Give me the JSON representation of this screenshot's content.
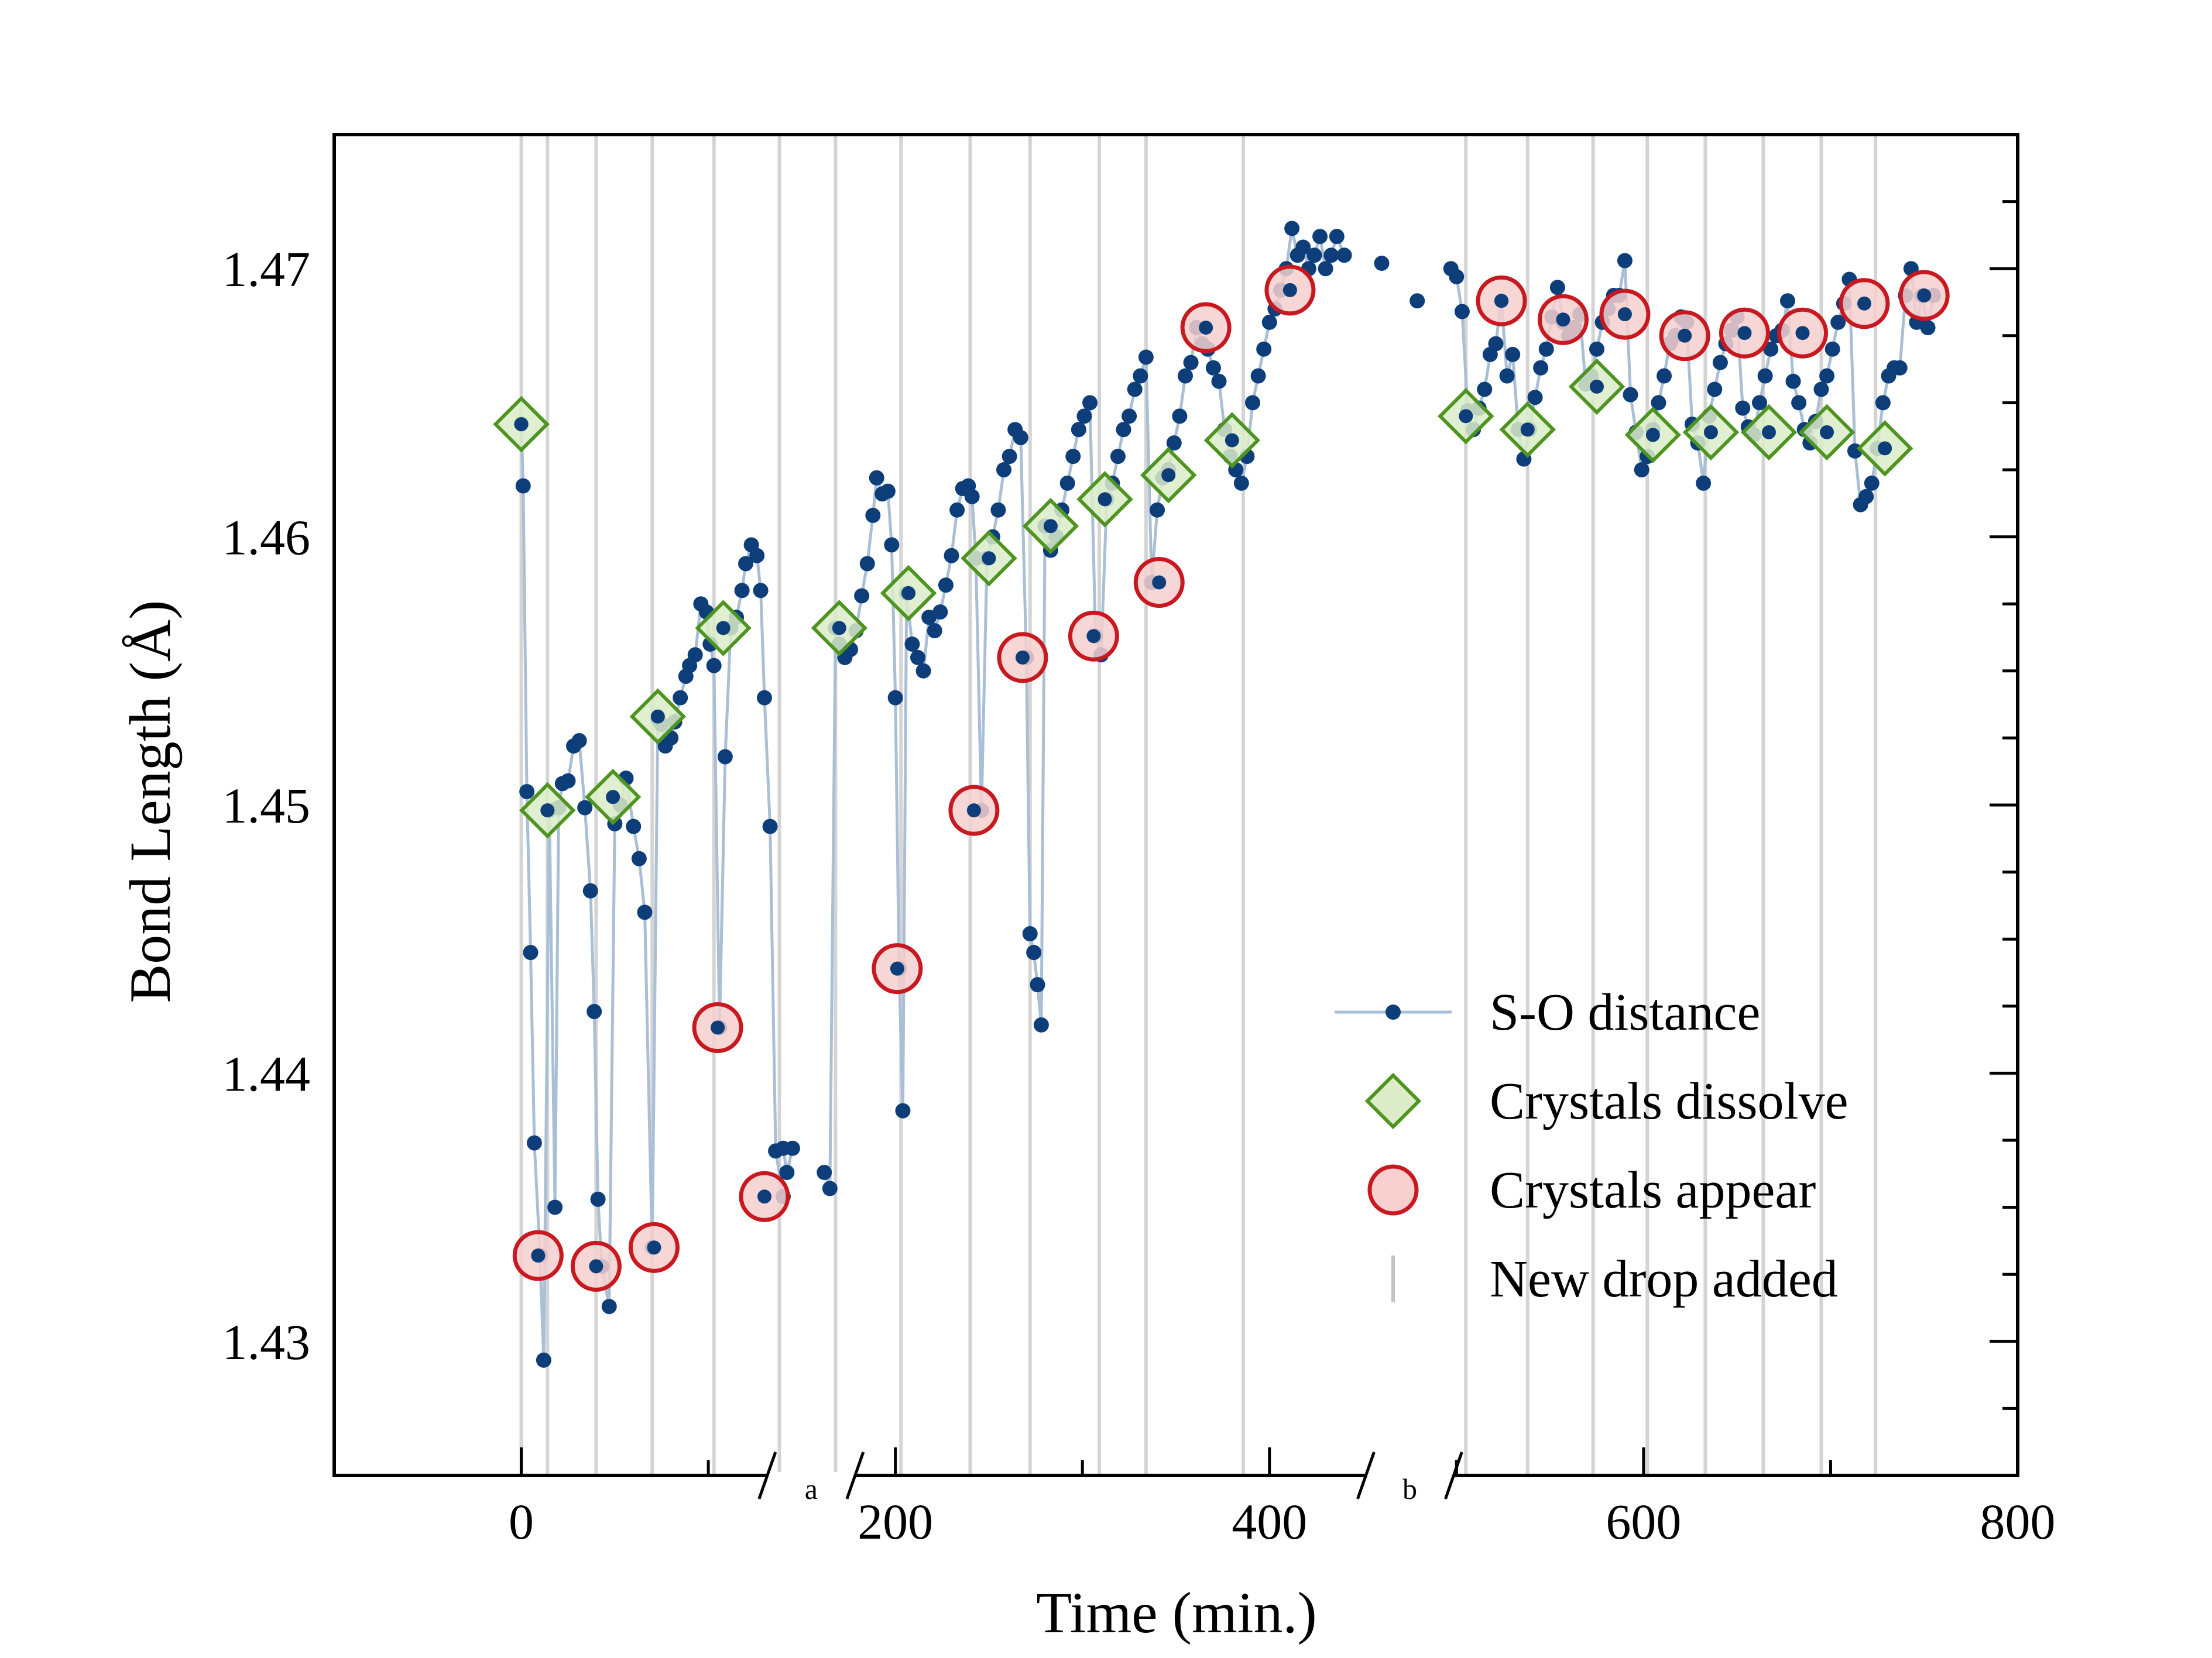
{
  "chart_data": {
    "type": "scatter",
    "title": "",
    "xlabel": "Time (min.)",
    "ylabel": "Bond Length (Å)",
    "xlim": [
      -100,
      800
    ],
    "ylim": [
      1.425,
      1.475
    ],
    "xticks": [
      0,
      200,
      400,
      600,
      800
    ],
    "xtick_labels": [
      "0",
      "200",
      "400",
      "600",
      "800"
    ],
    "yticks": [
      1.43,
      1.44,
      1.45,
      1.46,
      1.47
    ],
    "ytick_labels": [
      "1.43",
      "1.44",
      "1.45",
      "1.46",
      "1.47"
    ],
    "axis_breaks": [
      {
        "label": "a",
        "at": 155
      },
      {
        "label": "b",
        "at": 475
      }
    ],
    "legend": {
      "position": "lower-right",
      "entries": [
        {
          "label": "S-O distance",
          "marker": "line-dot"
        },
        {
          "label": "Crystals dissolve",
          "marker": "diamond"
        },
        {
          "label": "Crystals appear",
          "marker": "circle"
        },
        {
          "label": "New drop added",
          "marker": "vline"
        }
      ]
    },
    "colors": {
      "line": "#a9bfd6",
      "point": "#0d3e7a",
      "diamond_edge": "#4e9420",
      "diamond_fill": "#dcecc9",
      "circle_edge": "#c81820",
      "circle_fill": "#f6cfcf",
      "drop_line": "#d4d4d4"
    },
    "new_drop_times": [
      0,
      14,
      40,
      70,
      103,
      138,
      168,
      203,
      240,
      272,
      309,
      334,
      386,
      505,
      538,
      573,
      602,
      633,
      664,
      695,
      724
    ],
    "series": [
      {
        "name": "S-O distance",
        "segments": [
          {
            "x": [
              0,
              1,
              3,
              5,
              7,
              10,
              12,
              15,
              18,
              20,
              22,
              25,
              28,
              31,
              34,
              37,
              39,
              41,
              43,
              47,
              50,
              53,
              56,
              60,
              63,
              66,
              70,
              73,
              75,
              77,
              80,
              82,
              85,
              88,
              90,
              93,
              96,
              99,
              101,
              103,
              106,
              109,
              112,
              115,
              118,
              120,
              123,
              126,
              128,
              130,
              133,
              136,
              140
            ],
            "y": [
              1.4642,
              1.4619,
              1.4505,
              1.4445,
              1.4374,
              1.4332,
              1.4293,
              1.4498,
              1.435,
              1.4499,
              1.4508,
              1.4509,
              1.4522,
              1.4524,
              1.4499,
              1.4468,
              1.4423,
              1.4353,
              1.4328,
              1.4313,
              1.4493,
              1.45,
              1.451,
              1.4492,
              1.448,
              1.446,
              1.4335,
              1.4532,
              1.453,
              1.4522,
              1.4525,
              1.4531,
              1.454,
              1.4548,
              1.4552,
              1.4556,
              1.4575,
              1.4572,
              1.456,
              1.4552,
              1.4417,
              1.4518,
              1.4566,
              1.457,
              1.458,
              1.459,
              1.4597,
              1.4593,
              1.458,
              1.454,
              1.4492,
              1.4371,
              1.4354
            ]
          },
          {
            "x": [
              140,
              142,
              145
            ],
            "y": [
              1.4372,
              1.4363,
              1.4372
            ]
          },
          {
            "x": [
              162,
              165,
              168,
              170,
              173,
              176,
              179,
              182,
              185,
              188,
              190,
              193,
              196,
              198,
              200,
              202,
              204,
              206,
              209,
              212,
              215,
              218,
              221,
              224,
              227,
              230,
              233,
              236,
              239,
              241,
              243,
              246,
              249,
              252,
              255,
              258,
              261,
              264,
              267,
              270,
              272,
              274,
              276,
              278,
              280,
              283,
              286,
              289,
              292,
              295,
              298,
              301,
              304,
              307,
              310,
              313,
              316,
              319,
              322,
              325,
              328,
              331,
              334,
              337,
              340,
              343,
              346,
              349,
              352,
              355,
              358,
              361,
              364,
              367,
              370,
              373,
              376,
              379,
              382,
              385,
              388,
              391,
              394,
              397,
              400,
              403,
              406,
              409,
              412,
              415,
              418,
              421,
              424,
              427,
              430,
              433,
              436,
              440
            ],
            "y": [
              1.4363,
              1.4357,
              1.4566,
              1.456,
              1.4555,
              1.4558,
              1.4565,
              1.4578,
              1.459,
              1.4608,
              1.4622,
              1.4616,
              1.4617,
              1.4597,
              1.454,
              1.4439,
              1.4386,
              1.4579,
              1.456,
              1.4555,
              1.455,
              1.457,
              1.4565,
              1.4572,
              1.4582,
              1.4593,
              1.461,
              1.4618,
              1.4619,
              1.4615,
              1.4592,
              1.4498,
              1.4592,
              1.46,
              1.461,
              1.4625,
              1.463,
              1.464,
              1.4637,
              1.4555,
              1.4452,
              1.4445,
              1.4433,
              1.4418,
              1.4604,
              1.4595,
              1.46,
              1.461,
              1.462,
              1.463,
              1.464,
              1.4645,
              1.465,
              1.4563,
              1.4556,
              1.4614,
              1.462,
              1.463,
              1.464,
              1.4645,
              1.4655,
              1.466,
              1.4667,
              1.4583,
              1.461,
              1.4622,
              1.4625,
              1.4635,
              1.4645,
              1.466,
              1.4665,
              1.4678,
              1.4672,
              1.467,
              1.4663,
              1.4658,
              1.464,
              1.463,
              1.4625,
              1.462,
              1.463,
              1.465,
              1.466,
              1.467,
              1.468,
              1.4685,
              1.4692,
              1.47,
              1.4715,
              1.4705,
              1.4708,
              1.47,
              1.4705,
              1.4712,
              1.47,
              1.4705,
              1.4712,
              1.4705
            ]
          }
        ],
        "isolated_points": {
          "x": [
            460,
            479,
            497
          ],
          "y": [
            1.4702,
            1.4688,
            1.47
          ]
        },
        "segments_b": [
          {
            "x": [
              500,
              503,
              506,
              509,
              512,
              515,
              518,
              521,
              524,
              527,
              530,
              533,
              536,
              539,
              542,
              545,
              548,
              551,
              554,
              557,
              560,
              563,
              566,
              569,
              572,
              575,
              578,
              581,
              584,
              587,
              590,
              593,
              596,
              599,
              602,
              605,
              608,
              611,
              614,
              617,
              620,
              623,
              626,
              629,
              632,
              635,
              638,
              641,
              644,
              647,
              650,
              653,
              656,
              659,
              662,
              665,
              668,
              671,
              674,
              677,
              680,
              683,
              686,
              689,
              692,
              695,
              698,
              701,
              704,
              707,
              710,
              713,
              716,
              719,
              722,
              725,
              728,
              731,
              734,
              737,
              740,
              743,
              746,
              749,
              752,
              755
            ],
            "y": [
              1.4697,
              1.4684,
              1.4647,
              1.464,
              1.4648,
              1.4655,
              1.4668,
              1.4672,
              1.4688,
              1.466,
              1.4668,
              1.464,
              1.4629,
              1.464,
              1.4652,
              1.4663,
              1.467,
              1.4682,
              1.4693,
              1.468,
              1.4675,
              1.4678,
              1.4683,
              1.4657,
              1.466,
              1.467,
              1.468,
              1.4685,
              1.469,
              1.469,
              1.4703,
              1.4653,
              1.4639,
              1.4625,
              1.463,
              1.464,
              1.465,
              1.466,
              1.4672,
              1.4675,
              1.4682,
              1.468,
              1.4642,
              1.4635,
              1.462,
              1.4645,
              1.4655,
              1.4665,
              1.4672,
              1.4677,
              1.4682,
              1.4648,
              1.4641,
              1.4638,
              1.465,
              1.466,
              1.467,
              1.4675,
              1.4677,
              1.4688,
              1.4658,
              1.465,
              1.464,
              1.4635,
              1.4643,
              1.4655,
              1.466,
              1.467,
              1.468,
              1.4687,
              1.4696,
              1.4632,
              1.4612,
              1.4615,
              1.462,
              1.4633,
              1.465,
              1.466,
              1.4663,
              1.4663,
              1.469,
              1.47,
              1.468,
              1.469,
              1.4678,
              1.469
            ]
          }
        ]
      }
    ],
    "crystals_dissolve": {
      "x": [
        0,
        14,
        49,
        73,
        108,
        170,
        207,
        250,
        283,
        312,
        346,
        380,
        505,
        538,
        575,
        605,
        636,
        667,
        698,
        729
      ],
      "y": [
        1.4642,
        1.4498,
        1.4503,
        1.4533,
        1.4566,
        1.4566,
        1.4579,
        1.4592,
        1.4604,
        1.4614,
        1.4623,
        1.4636,
        1.4645,
        1.464,
        1.4656,
        1.4638,
        1.4639,
        1.4639,
        1.4639,
        1.4633
      ]
    },
    "crystals_appear": {
      "x": [
        9,
        40,
        71,
        105,
        130,
        201,
        242,
        268,
        306,
        341,
        366,
        411,
        524,
        557,
        590,
        622,
        654,
        685,
        718,
        750
      ],
      "y": [
        1.4332,
        1.4328,
        1.4335,
        1.4417,
        1.4354,
        1.4439,
        1.4498,
        1.4555,
        1.4563,
        1.4583,
        1.4678,
        1.4692,
        1.4688,
        1.4681,
        1.4683,
        1.4675,
        1.4676,
        1.4676,
        1.4687,
        1.469
      ]
    }
  }
}
